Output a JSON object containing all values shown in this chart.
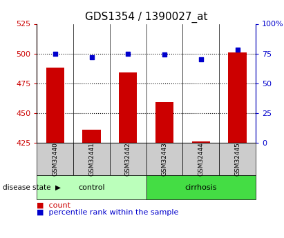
{
  "title": "GDS1354 / 1390027_at",
  "samples": [
    "GSM32440",
    "GSM32441",
    "GSM32442",
    "GSM32443",
    "GSM32444",
    "GSM32445"
  ],
  "counts": [
    488,
    436,
    484,
    459,
    426,
    501
  ],
  "percentiles": [
    75,
    72,
    75,
    74,
    70,
    78
  ],
  "ylim_left": [
    425,
    525
  ],
  "ylim_right": [
    0,
    100
  ],
  "yticks_left": [
    425,
    450,
    475,
    500,
    525
  ],
  "yticks_right": [
    0,
    25,
    50,
    75,
    100
  ],
  "ytick_labels_right": [
    "0",
    "25",
    "50",
    "75",
    "100%"
  ],
  "bar_color": "#cc0000",
  "scatter_color": "#0000cc",
  "bar_bottom": 425,
  "groups": [
    {
      "label": "control",
      "indices": [
        0,
        1,
        2
      ],
      "color": "#bbffbb"
    },
    {
      "label": "cirrhosis",
      "indices": [
        3,
        4,
        5
      ],
      "color": "#44dd44"
    }
  ],
  "grid_yticks": [
    450,
    475,
    500
  ],
  "sample_box_color": "#cccccc",
  "title_fontsize": 11,
  "tick_fontsize": 8,
  "bar_width": 0.5
}
